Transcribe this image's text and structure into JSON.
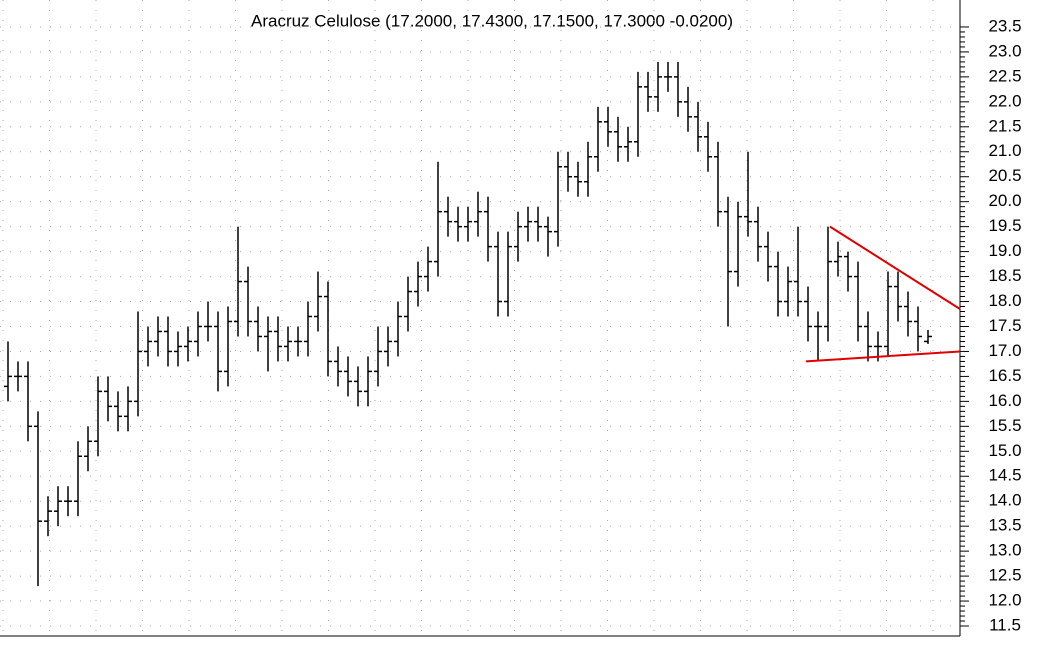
{
  "chart_data": {
    "type": "ohlc",
    "title": "Aracruz Celulose (17.2000, 17.4300, 17.1500, 17.3000 -0.0200)",
    "color": "#000000",
    "grid": true,
    "xlim": [
      -0.8,
      95.2
    ],
    "ylim": [
      11.3,
      24.04
    ],
    "yticks": [
      {
        "value": 11.5,
        "label": "11.5"
      },
      {
        "value": 12,
        "label": "12.0"
      },
      {
        "value": 12.5,
        "label": "12.5"
      },
      {
        "value": 13,
        "label": "13.0"
      },
      {
        "value": 13.5,
        "label": "13.5"
      },
      {
        "value": 14,
        "label": "14.0"
      },
      {
        "value": 14.5,
        "label": "14.5"
      },
      {
        "value": 15,
        "label": "15.0"
      },
      {
        "value": 15.5,
        "label": "15.5"
      },
      {
        "value": 16,
        "label": "16.0"
      },
      {
        "value": 16.5,
        "label": "16.5"
      },
      {
        "value": 17,
        "label": "17.0"
      },
      {
        "value": 17.5,
        "label": "17.5"
      },
      {
        "value": 18,
        "label": "18.0"
      },
      {
        "value": 18.5,
        "label": "18.5"
      },
      {
        "value": 19,
        "label": "19.0"
      },
      {
        "value": 19.5,
        "label": "19.5"
      },
      {
        "value": 20,
        "label": "20.0"
      },
      {
        "value": 20.5,
        "label": "20.5"
      },
      {
        "value": 21,
        "label": "21.0"
      },
      {
        "value": 21.5,
        "label": "21.5"
      },
      {
        "value": 22,
        "label": "22.0"
      },
      {
        "value": 22.5,
        "label": "22.5"
      },
      {
        "value": 23,
        "label": "23.0"
      },
      {
        "value": 23.5,
        "label": "23.5"
      }
    ],
    "open": [
      16.3,
      16.5,
      16.5,
      15.5,
      13.6,
      13.8,
      14.0,
      14.0,
      14.9,
      15.2,
      16.2,
      15.9,
      15.7,
      16.0,
      17.0,
      17.2,
      17.4,
      17.0,
      17.1,
      17.2,
      17.5,
      17.5,
      16.6,
      17.6,
      18.4,
      17.6,
      17.3,
      17.4,
      17.1,
      17.2,
      17.2,
      17.7,
      18.1,
      16.8,
      16.6,
      16.4,
      16.2,
      16.6,
      17.0,
      17.2,
      17.7,
      18.2,
      18.5,
      18.8,
      19.8,
      19.6,
      19.5,
      19.6,
      19.8,
      19.1,
      18.0,
      19.1,
      19.5,
      19.6,
      19.5,
      19.4,
      20.7,
      20.5,
      20.4,
      20.9,
      21.6,
      21.4,
      21.1,
      21.2,
      22.3,
      22.1,
      22.5,
      22.5,
      22.0,
      21.7,
      21.3,
      20.9,
      19.8,
      18.6,
      19.7,
      19.6,
      19.1,
      18.7,
      18.0,
      18.4,
      18.0,
      17.5,
      17.5,
      18.8,
      18.9,
      18.5,
      17.5,
      17.1,
      17.1,
      18.3,
      17.9,
      17.6,
      17.2
    ],
    "high": [
      17.2,
      16.8,
      16.8,
      15.8,
      14.1,
      14.3,
      14.3,
      15.2,
      15.5,
      16.5,
      16.5,
      16.2,
      16.3,
      17.8,
      17.5,
      17.7,
      17.7,
      17.4,
      17.5,
      17.8,
      18.0,
      17.8,
      17.9,
      19.5,
      18.7,
      17.9,
      17.7,
      17.7,
      17.5,
      17.5,
      18.0,
      18.6,
      18.4,
      17.1,
      16.9,
      16.7,
      16.9,
      17.5,
      17.5,
      18.0,
      18.5,
      18.8,
      19.1,
      20.8,
      20.1,
      19.9,
      19.9,
      20.2,
      20.1,
      19.4,
      19.4,
      19.8,
      19.9,
      19.9,
      19.7,
      21.0,
      21.0,
      20.8,
      21.2,
      21.9,
      21.9,
      21.7,
      21.5,
      22.6,
      22.6,
      22.8,
      22.8,
      22.8,
      22.3,
      22.0,
      21.6,
      21.2,
      20.1,
      20.0,
      21.0,
      19.9,
      19.4,
      19.0,
      18.7,
      19.5,
      18.3,
      17.8,
      19.5,
      19.2,
      19.0,
      18.8,
      17.8,
      17.4,
      18.6,
      18.6,
      18.2,
      17.9,
      17.43
    ],
    "low": [
      16.0,
      16.2,
      15.2,
      12.3,
      13.3,
      13.5,
      13.7,
      13.7,
      14.6,
      14.9,
      15.6,
      15.4,
      15.4,
      15.7,
      16.7,
      16.9,
      16.7,
      16.7,
      16.8,
      16.9,
      17.2,
      16.2,
      16.3,
      17.3,
      17.3,
      17.0,
      16.6,
      16.8,
      16.8,
      16.9,
      16.9,
      17.4,
      16.5,
      16.3,
      16.1,
      15.9,
      15.9,
      16.3,
      16.7,
      16.9,
      17.4,
      17.9,
      18.2,
      18.5,
      19.3,
      19.2,
      19.2,
      19.3,
      18.8,
      17.7,
      17.7,
      18.8,
      19.2,
      19.2,
      18.9,
      19.1,
      20.2,
      20.1,
      20.1,
      20.6,
      21.1,
      20.8,
      20.8,
      20.9,
      21.8,
      21.8,
      22.2,
      21.7,
      21.4,
      21.0,
      20.6,
      19.5,
      17.5,
      18.3,
      19.3,
      18.8,
      18.4,
      17.7,
      17.7,
      17.7,
      17.2,
      16.8,
      17.2,
      18.5,
      18.2,
      17.2,
      16.8,
      16.8,
      16.9,
      17.6,
      17.3,
      17.0,
      17.15
    ],
    "close": [
      16.5,
      16.5,
      15.5,
      13.6,
      13.8,
      14.0,
      14.0,
      14.9,
      15.2,
      16.2,
      15.9,
      15.7,
      16.0,
      17.0,
      17.2,
      17.4,
      17.0,
      17.1,
      17.2,
      17.5,
      17.5,
      16.6,
      17.6,
      18.4,
      17.6,
      17.3,
      17.4,
      17.1,
      17.2,
      17.2,
      17.7,
      18.1,
      16.8,
      16.6,
      16.4,
      16.2,
      16.6,
      17.0,
      17.2,
      17.7,
      18.2,
      18.5,
      18.8,
      19.8,
      19.6,
      19.5,
      19.6,
      19.8,
      19.1,
      18.0,
      19.1,
      19.5,
      19.6,
      19.5,
      19.4,
      20.7,
      20.5,
      20.4,
      20.9,
      21.6,
      21.4,
      21.1,
      21.2,
      22.3,
      22.1,
      22.5,
      22.5,
      22.0,
      21.7,
      21.3,
      20.9,
      19.8,
      18.6,
      19.7,
      19.6,
      19.1,
      18.7,
      18.0,
      18.4,
      18.0,
      17.5,
      17.5,
      18.8,
      18.9,
      18.5,
      17.5,
      17.1,
      17.1,
      18.3,
      17.9,
      17.6,
      17.3,
      17.3
    ],
    "trendlines": [
      {
        "color": "#e00000",
        "x": [
          82.2,
          95.2
        ],
        "y": [
          19.5,
          17.85
        ]
      },
      {
        "color": "#e00000",
        "x": [
          79.8,
          95.2
        ],
        "y": [
          16.8,
          17.0
        ]
      }
    ]
  }
}
